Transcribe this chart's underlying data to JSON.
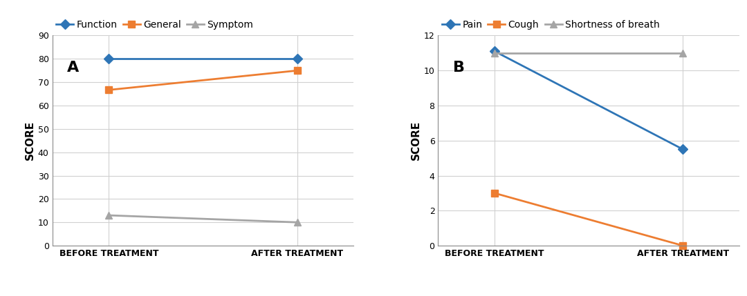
{
  "panel_A": {
    "label": "A",
    "series": [
      {
        "name": "Function",
        "color": "#2E75B6",
        "marker": "D",
        "before": 80,
        "after": 80
      },
      {
        "name": "General",
        "color": "#ED7D31",
        "marker": "s",
        "before": 66.7,
        "after": 75
      },
      {
        "name": "Symptom",
        "color": "#A5A5A5",
        "marker": "^",
        "before": 13,
        "after": 10
      }
    ],
    "ylabel": "SCORE",
    "ylim": [
      0,
      90
    ],
    "yticks": [
      0,
      10,
      20,
      30,
      40,
      50,
      60,
      70,
      80,
      90
    ],
    "xtick_labels": [
      "BEFORE TREATMENT",
      "AFTER TREATMENT"
    ]
  },
  "panel_B": {
    "label": "B",
    "series": [
      {
        "name": "Pain",
        "color": "#2E75B6",
        "marker": "D",
        "before": 11.1,
        "after": 5.5
      },
      {
        "name": "Cough",
        "color": "#ED7D31",
        "marker": "s",
        "before": 3.0,
        "after": 0.0
      },
      {
        "name": "Shortness of breath",
        "color": "#A5A5A5",
        "marker": "^",
        "before": 11.0,
        "after": 11.0
      }
    ],
    "ylabel": "SCORE",
    "ylim": [
      0,
      12
    ],
    "yticks": [
      0,
      2,
      4,
      6,
      8,
      10,
      12
    ],
    "xtick_labels": [
      "BEFORE TREATMENT",
      "AFTER TREATMENT"
    ]
  },
  "line_width": 2.0,
  "marker_size": 7,
  "grid_color": "#D0D0D0",
  "bg_color": "#FFFFFF",
  "ylabel_fontsize": 11,
  "tick_fontsize": 9,
  "legend_fontsize": 10,
  "panel_label_fontsize": 16
}
